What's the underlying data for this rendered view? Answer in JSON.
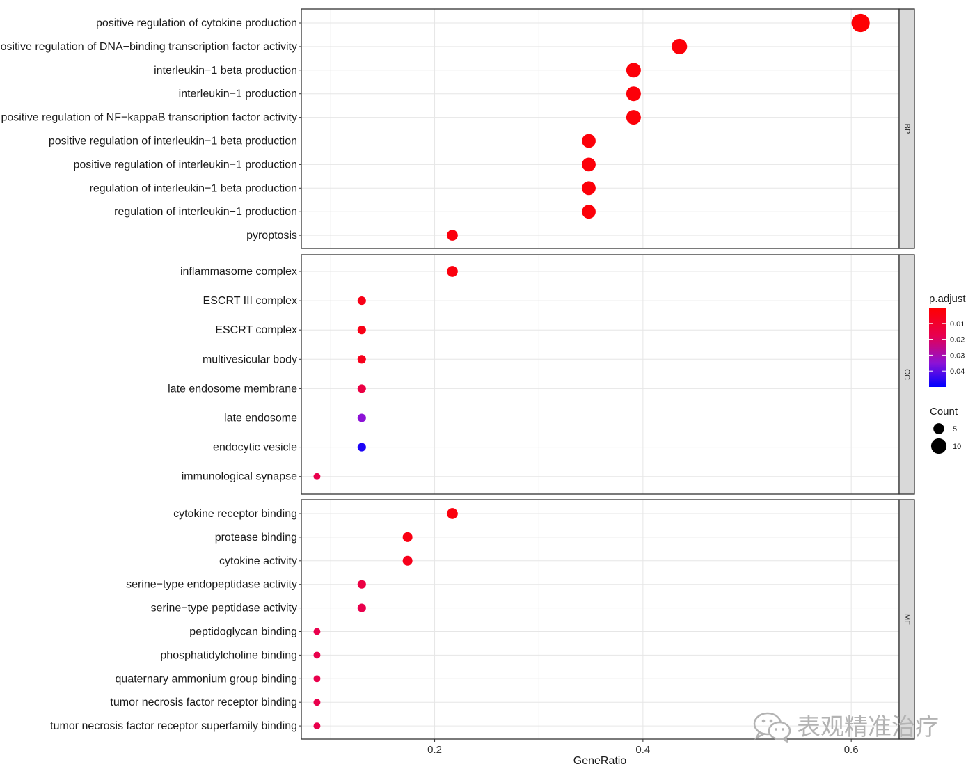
{
  "chart_data": {
    "type": "scatter",
    "xlabel": "GeneRatio",
    "xlim": [
      0.072,
      0.646
    ],
    "x_ticks": [
      0.2,
      0.4,
      0.6
    ],
    "x_tick_labels": [
      "0.2",
      "0.4",
      "0.6"
    ],
    "grid": true,
    "legend_position": "right",
    "panels": [
      {
        "facet": "BP",
        "points": [
          {
            "term": "positive regulation of cytokine production",
            "gene_ratio": 0.609,
            "count": 14,
            "p_adjust": 0.001
          },
          {
            "term": "positive regulation of DNA−binding transcription factor activity",
            "gene_ratio": 0.435,
            "count": 10,
            "p_adjust": 0.002
          },
          {
            "term": "interleukin−1 beta production",
            "gene_ratio": 0.391,
            "count": 9,
            "p_adjust": 0.002
          },
          {
            "term": "interleukin−1 production",
            "gene_ratio": 0.391,
            "count": 9,
            "p_adjust": 0.002
          },
          {
            "term": "positive regulation of NF−kappaB transcription factor activity",
            "gene_ratio": 0.391,
            "count": 9,
            "p_adjust": 0.002
          },
          {
            "term": "positive regulation of interleukin−1 beta production",
            "gene_ratio": 0.348,
            "count": 8,
            "p_adjust": 0.002
          },
          {
            "term": "positive regulation of interleukin−1 production",
            "gene_ratio": 0.348,
            "count": 8,
            "p_adjust": 0.002
          },
          {
            "term": "regulation of interleukin−1 beta production",
            "gene_ratio": 0.348,
            "count": 8,
            "p_adjust": 0.002
          },
          {
            "term": "regulation of interleukin−1 production",
            "gene_ratio": 0.348,
            "count": 8,
            "p_adjust": 0.002
          },
          {
            "term": "pyroptosis",
            "gene_ratio": 0.217,
            "count": 5,
            "p_adjust": 0.003
          }
        ]
      },
      {
        "facet": "CC",
        "points": [
          {
            "term": "inflammasome complex",
            "gene_ratio": 0.217,
            "count": 5,
            "p_adjust": 0.003
          },
          {
            "term": "ESCRT III complex",
            "gene_ratio": 0.13,
            "count": 3,
            "p_adjust": 0.005
          },
          {
            "term": "ESCRT complex",
            "gene_ratio": 0.13,
            "count": 3,
            "p_adjust": 0.005
          },
          {
            "term": "multivesicular body",
            "gene_ratio": 0.13,
            "count": 3,
            "p_adjust": 0.006
          },
          {
            "term": "late endosome membrane",
            "gene_ratio": 0.13,
            "count": 3,
            "p_adjust": 0.015
          },
          {
            "term": "late endosome",
            "gene_ratio": 0.13,
            "count": 3,
            "p_adjust": 0.035
          },
          {
            "term": "endocytic vesicle",
            "gene_ratio": 0.13,
            "count": 3,
            "p_adjust": 0.047
          },
          {
            "term": "immunological synapse",
            "gene_ratio": 0.087,
            "count": 2,
            "p_adjust": 0.017
          }
        ]
      },
      {
        "facet": "MF",
        "points": [
          {
            "term": "cytokine receptor binding",
            "gene_ratio": 0.217,
            "count": 5,
            "p_adjust": 0.003
          },
          {
            "term": "protease binding",
            "gene_ratio": 0.174,
            "count": 4,
            "p_adjust": 0.004
          },
          {
            "term": "cytokine activity",
            "gene_ratio": 0.174,
            "count": 4,
            "p_adjust": 0.006
          },
          {
            "term": "serine−type endopeptidase activity",
            "gene_ratio": 0.13,
            "count": 3,
            "p_adjust": 0.015
          },
          {
            "term": "serine−type peptidase activity",
            "gene_ratio": 0.13,
            "count": 3,
            "p_adjust": 0.017
          },
          {
            "term": "peptidoglycan binding",
            "gene_ratio": 0.087,
            "count": 2,
            "p_adjust": 0.017
          },
          {
            "term": "phosphatidylcholine binding",
            "gene_ratio": 0.087,
            "count": 2,
            "p_adjust": 0.017
          },
          {
            "term": "quaternary ammonium group binding",
            "gene_ratio": 0.087,
            "count": 2,
            "p_adjust": 0.017
          },
          {
            "term": "tumor necrosis factor receptor binding",
            "gene_ratio": 0.087,
            "count": 2,
            "p_adjust": 0.017
          },
          {
            "term": "tumor necrosis factor receptor superfamily binding",
            "gene_ratio": 0.087,
            "count": 2,
            "p_adjust": 0.017
          }
        ]
      }
    ],
    "color_legend": {
      "title": "p.adjust",
      "ticks": [
        0.01,
        0.02,
        0.03,
        0.04
      ],
      "tick_labels": [
        "0.01",
        "0.02",
        "0.03",
        "0.04"
      ],
      "range": [
        0.0,
        0.05
      ],
      "low_color": "#ff0000",
      "high_color": "#0000ff"
    },
    "size_legend": {
      "title": "Count",
      "values": [
        5,
        10
      ],
      "labels": [
        "5",
        "10"
      ]
    }
  },
  "watermark": {
    "text": "表观精准治疗",
    "icon": "wechat-icon"
  }
}
